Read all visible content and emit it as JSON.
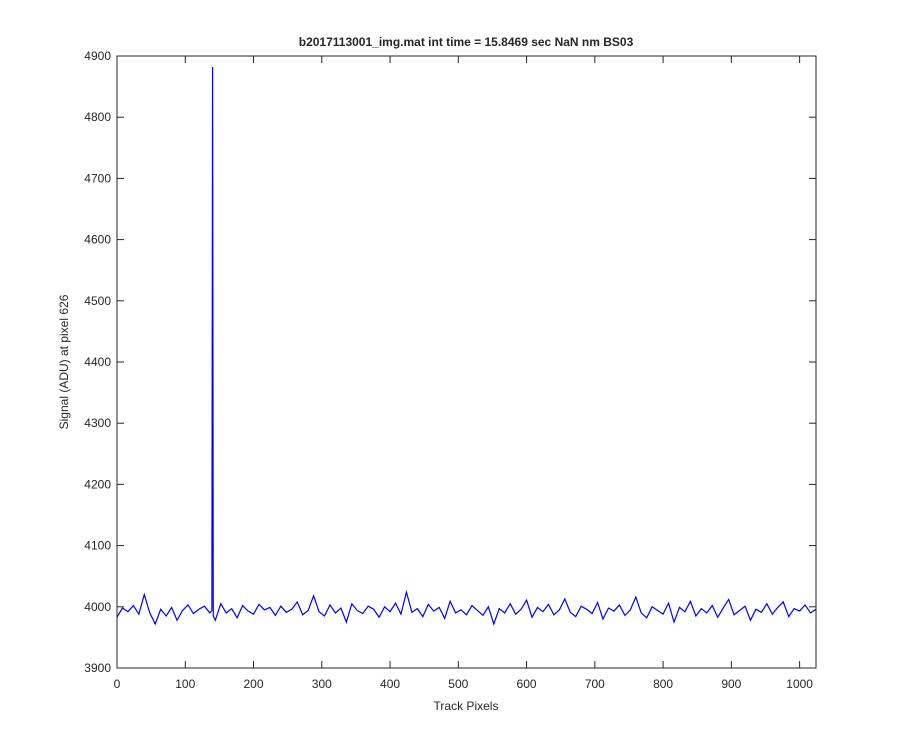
{
  "chart_data": {
    "type": "line",
    "title": "b2017113001_img.mat int time = 15.8469 sec  NaN nm BS03",
    "xlabel": "Track Pixels",
    "ylabel": "Signal (ADU) at pixel 626",
    "xlim": [
      0,
      1024
    ],
    "ylim": [
      3900,
      4900
    ],
    "xticks": [
      0,
      100,
      200,
      300,
      400,
      500,
      600,
      700,
      800,
      900,
      1000
    ],
    "yticks": [
      3900,
      4000,
      4100,
      4200,
      4300,
      4400,
      4500,
      4600,
      4700,
      4800,
      4900
    ],
    "grid": false,
    "series": [
      {
        "color": "#0000ff",
        "x": [
          0,
          8,
          16,
          24,
          32,
          40,
          48,
          56,
          64,
          72,
          80,
          88,
          96,
          104,
          112,
          120,
          128,
          136,
          139,
          140,
          141,
          144,
          152,
          160,
          168,
          176,
          184,
          192,
          200,
          208,
          216,
          224,
          232,
          240,
          248,
          256,
          264,
          272,
          280,
          288,
          296,
          304,
          312,
          320,
          328,
          336,
          344,
          352,
          360,
          368,
          376,
          384,
          392,
          400,
          408,
          416,
          424,
          432,
          440,
          448,
          456,
          464,
          472,
          480,
          488,
          496,
          504,
          512,
          520,
          528,
          536,
          544,
          552,
          560,
          568,
          576,
          584,
          592,
          600,
          608,
          616,
          624,
          632,
          640,
          648,
          656,
          664,
          672,
          680,
          688,
          696,
          704,
          712,
          720,
          728,
          736,
          744,
          752,
          760,
          768,
          776,
          784,
          792,
          800,
          808,
          816,
          824,
          832,
          840,
          848,
          856,
          864,
          872,
          880,
          888,
          896,
          904,
          912,
          920,
          928,
          936,
          944,
          952,
          960,
          968,
          976,
          984,
          992,
          1000,
          1008,
          1016,
          1024
        ],
        "values": [
          3983,
          3998,
          3992,
          4002,
          3988,
          4020,
          3990,
          3972,
          3996,
          3985,
          3999,
          3978,
          3994,
          4003,
          3989,
          3996,
          4001,
          3990,
          3994,
          4882,
          3985,
          3978,
          4005,
          3990,
          3997,
          3982,
          4002,
          3993,
          3988,
          4004,
          3995,
          3999,
          3986,
          4001,
          3991,
          3996,
          4008,
          3987,
          3994,
          4018,
          3992,
          3985,
          4003,
          3990,
          3998,
          3975,
          4005,
          3994,
          3989,
          4001,
          3996,
          3983,
          4000,
          3992,
          4006,
          3988,
          4024,
          3991,
          3997,
          3984,
          4004,
          3993,
          3999,
          3981,
          4009,
          3990,
          3995,
          3987,
          4002,
          3994,
          3986,
          4000,
          3972,
          3997,
          3990,
          4005,
          3988,
          3996,
          4011,
          3983,
          3999,
          3992,
          4004,
          3987,
          3995,
          4013,
          3991,
          3984,
          4001,
          3996,
          3989,
          4007,
          3980,
          3998,
          3993,
          4003,
          3986,
          3995,
          4016,
          3990,
          3982,
          4000,
          3994,
          3988,
          4006,
          3975,
          3999,
          3992,
          4009,
          3985,
          3997,
          3990,
          4002,
          3983,
          3998,
          4012,
          3987,
          3994,
          4001,
          3978,
          3996,
          3991,
          4005,
          3988,
          3999,
          4008,
          3984,
          3997,
          3993,
          4003,
          3990,
          3996
        ]
      }
    ]
  }
}
